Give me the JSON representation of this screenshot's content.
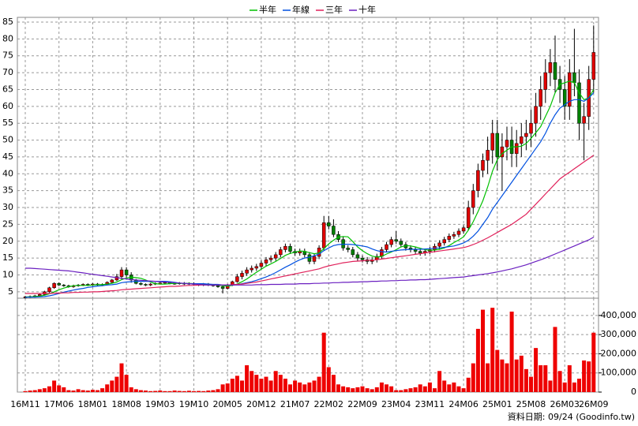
{
  "chart_data": {
    "type": "candlestick",
    "legend": "top",
    "grid": true,
    "source": "資料日期: 09/24 (Goodinfo.tw)",
    "up_color": "#e00000",
    "down_color": "#008000",
    "volume_color": "#ee0000",
    "categories": [
      "16M11",
      null,
      null,
      null,
      null,
      null,
      null,
      "17M06",
      null,
      null,
      null,
      null,
      null,
      null,
      "18M01",
      null,
      null,
      null,
      null,
      null,
      null,
      "18M08",
      null,
      null,
      null,
      null,
      null,
      null,
      "19M03",
      null,
      null,
      null,
      null,
      null,
      null,
      "19M10",
      null,
      null,
      null,
      null,
      null,
      null,
      "20M05",
      null,
      null,
      null,
      null,
      null,
      null,
      "20M12",
      null,
      null,
      null,
      null,
      null,
      null,
      "21M07",
      null,
      null,
      null,
      null,
      null,
      null,
      "22M02",
      null,
      null,
      null,
      null,
      null,
      null,
      "22M09",
      null,
      null,
      null,
      null,
      null,
      null,
      "23M04",
      null,
      null,
      null,
      null,
      null,
      null,
      "23M11",
      null,
      null,
      null,
      null,
      null,
      null,
      "24M06",
      null,
      null,
      null,
      null,
      null,
      null,
      "25M01",
      null,
      null,
      null,
      null,
      null,
      null,
      "25M08",
      null,
      null,
      null,
      null,
      null,
      null,
      "26M03",
      null,
      null,
      null,
      null,
      null,
      "26M09"
    ],
    "open": [
      3.3,
      3.5,
      3.6,
      3.8,
      4.2,
      5.0,
      6.2,
      7.5,
      7.0,
      6.8,
      6.5,
      6.8,
      7.0,
      7.2,
      7.0,
      7.3,
      7.0,
      7.2,
      7.8,
      8.5,
      9.5,
      11.5,
      10.0,
      8.5,
      7.5,
      7.2,
      7.0,
      7.3,
      7.5,
      7.6,
      7.8,
      7.5,
      7.4,
      7.6,
      7.3,
      7.5,
      7.2,
      7.0,
      7.3,
      7.0,
      6.8,
      6.5,
      6.0,
      7.0,
      8.0,
      9.5,
      10.5,
      11.5,
      12.0,
      12.5,
      13.5,
      14.5,
      15.0,
      16.0,
      17.5,
      18.5,
      17.0,
      16.5,
      17.0,
      16.0,
      14.0,
      15.5,
      18.0,
      25.5,
      24.5,
      22.0,
      20.5,
      18.0,
      17.5,
      16.0,
      15.0,
      14.5,
      14.0,
      14.5,
      15.5,
      17.5,
      19.0,
      20.5,
      20.0,
      19.0,
      18.0,
      17.5,
      17.0,
      16.5,
      17.0,
      17.5,
      18.5,
      19.5,
      20.5,
      21.5,
      22.0,
      23.0,
      24.0,
      30.0,
      35.0,
      41.0,
      44.0,
      47.0,
      52.0,
      45.0,
      48.0,
      50.0,
      46.0,
      49.0,
      51.0,
      52.0,
      55.0,
      60.0,
      65.0,
      70.0,
      73.0,
      68.0,
      65.0,
      60.0,
      70.0,
      67.0,
      55.0,
      57.0,
      68.0
    ],
    "high": [
      3.8,
      3.9,
      4.1,
      4.5,
      5.3,
      6.5,
      7.8,
      7.8,
      7.3,
      7.1,
      7.1,
      7.3,
      7.5,
      7.5,
      7.6,
      7.6,
      7.5,
      8.1,
      8.8,
      10.3,
      12.3,
      12.3,
      10.8,
      8.8,
      7.8,
      7.5,
      7.6,
      7.8,
      7.9,
      8.1,
      8.1,
      7.8,
      7.9,
      7.9,
      7.8,
      7.8,
      7.5,
      7.6,
      7.6,
      7.3,
      7.1,
      6.8,
      7.3,
      8.3,
      10.3,
      11.3,
      12.3,
      12.8,
      13.3,
      14.3,
      15.3,
      15.8,
      16.8,
      18.3,
      19.3,
      19.3,
      17.8,
      17.8,
      17.8,
      16.8,
      16.3,
      18.8,
      27.5,
      27.5,
      26.5,
      23.0,
      21.3,
      18.8,
      18.3,
      16.8,
      15.8,
      15.3,
      15.3,
      16.3,
      18.3,
      19.8,
      21.3,
      23.0,
      20.8,
      19.8,
      18.8,
      18.3,
      17.8,
      17.8,
      18.3,
      19.3,
      20.3,
      21.3,
      22.3,
      22.8,
      23.8,
      24.8,
      32.0,
      37.0,
      43.0,
      46.0,
      51.0,
      56.0,
      56.0,
      52.0,
      54.0,
      54.0,
      53.0,
      55.0,
      56.0,
      59.0,
      64.0,
      69.0,
      74.0,
      77.0,
      81.0,
      72.0,
      69.0,
      74.0,
      83.0,
      71.0,
      61.0,
      72.0,
      84.0
    ],
    "low": [
      3.0,
      3.2,
      3.3,
      3.5,
      3.9,
      4.7,
      5.9,
      6.7,
      6.5,
      6.2,
      6.2,
      6.5,
      6.7,
      6.7,
      6.7,
      6.7,
      6.7,
      6.9,
      7.5,
      8.2,
      8.7,
      9.2,
      7.7,
      7.2,
      6.9,
      6.7,
      6.7,
      7.0,
      7.2,
      7.3,
      7.2,
      7.1,
      7.1,
      7.0,
      7.0,
      6.9,
      6.7,
      6.7,
      6.7,
      6.5,
      6.2,
      4.5,
      5.7,
      6.7,
      7.7,
      8.7,
      9.7,
      10.7,
      11.2,
      11.7,
      12.7,
      13.7,
      14.2,
      15.2,
      16.7,
      16.2,
      15.7,
      15.7,
      15.2,
      13.2,
      13.2,
      14.7,
      17.2,
      23.5,
      21.2,
      19.7,
      17.2,
      16.7,
      15.2,
      14.2,
      13.7,
      13.2,
      13.2,
      13.7,
      14.7,
      16.7,
      18.2,
      19.2,
      18.2,
      17.2,
      16.7,
      16.2,
      15.7,
      15.7,
      16.2,
      16.7,
      17.7,
      18.7,
      19.7,
      20.7,
      21.2,
      22.2,
      23.2,
      28.0,
      33.0,
      39.0,
      40.0,
      43.0,
      41.0,
      35.0,
      44.0,
      42.0,
      42.0,
      45.0,
      47.0,
      48.0,
      51.0,
      56.0,
      61.0,
      66.0,
      64.0,
      61.0,
      56.0,
      56.0,
      63.0,
      50.0,
      44.0,
      53.0,
      64.0
    ],
    "close": [
      3.5,
      3.6,
      3.8,
      4.2,
      5.0,
      6.2,
      7.5,
      7.0,
      6.8,
      6.5,
      6.8,
      7.0,
      7.2,
      7.0,
      7.3,
      7.0,
      7.2,
      7.8,
      8.5,
      9.5,
      11.5,
      10.0,
      8.5,
      7.5,
      7.2,
      7.0,
      7.3,
      7.5,
      7.6,
      7.8,
      7.5,
      7.4,
      7.6,
      7.3,
      7.5,
      7.2,
      7.0,
      7.3,
      7.0,
      6.8,
      6.5,
      6.0,
      7.0,
      8.0,
      9.5,
      10.5,
      11.5,
      12.0,
      12.5,
      13.5,
      14.5,
      15.0,
      16.0,
      17.5,
      18.5,
      17.0,
      16.5,
      17.0,
      16.0,
      14.0,
      15.5,
      18.0,
      25.5,
      24.5,
      22.0,
      20.5,
      18.0,
      17.5,
      16.0,
      15.0,
      14.5,
      14.0,
      14.5,
      15.5,
      17.5,
      19.0,
      20.5,
      20.0,
      19.0,
      18.0,
      17.5,
      17.0,
      16.5,
      17.0,
      17.5,
      18.5,
      19.5,
      20.5,
      21.5,
      22.0,
      23.0,
      24.0,
      30.0,
      35.0,
      41.0,
      44.0,
      47.0,
      52.0,
      45.0,
      48.0,
      50.0,
      46.0,
      49.0,
      51.0,
      52.0,
      55.0,
      60.0,
      65.0,
      70.0,
      73.0,
      68.0,
      65.0,
      60.0,
      70.0,
      67.0,
      55.0,
      57.0,
      68.0,
      76.0
    ],
    "volume": [
      5000,
      8000,
      10000,
      15000,
      20000,
      30000,
      60000,
      35000,
      25000,
      10000,
      8000,
      15000,
      10000,
      8000,
      12000,
      10000,
      20000,
      40000,
      60000,
      80000,
      150000,
      90000,
      25000,
      15000,
      10000,
      8000,
      5000,
      6000,
      8000,
      5000,
      5000,
      8000,
      6000,
      5000,
      7000,
      5000,
      6000,
      5000,
      8000,
      10000,
      15000,
      40000,
      45000,
      70000,
      85000,
      60000,
      140000,
      110000,
      90000,
      70000,
      80000,
      60000,
      110000,
      90000,
      70000,
      40000,
      60000,
      50000,
      40000,
      50000,
      60000,
      80000,
      310000,
      130000,
      90000,
      40000,
      30000,
      25000,
      20000,
      25000,
      30000,
      20000,
      15000,
      25000,
      50000,
      40000,
      30000,
      10000,
      10000,
      15000,
      20000,
      25000,
      40000,
      30000,
      50000,
      20000,
      110000,
      60000,
      40000,
      50000,
      30000,
      20000,
      75000,
      150000,
      330000,
      430000,
      150000,
      440000,
      220000,
      170000,
      150000,
      420000,
      170000,
      190000,
      120000,
      80000,
      230000,
      140000,
      140000,
      60000,
      340000,
      110000,
      50000,
      140000,
      50000,
      70000,
      165000,
      160000,
      310000
    ],
    "series": [
      {
        "name": "半年",
        "color": "#00c000",
        "values": [
          3.5,
          3.5,
          3.6,
          3.7,
          4.0,
          4.4,
          5.0,
          5.6,
          6.1,
          6.5,
          6.8,
          6.9,
          6.9,
          6.9,
          7.0,
          7.1,
          7.1,
          7.3,
          7.5,
          7.9,
          8.6,
          9.1,
          9.3,
          9.2,
          9.0,
          8.5,
          7.9,
          7.4,
          7.3,
          7.3,
          7.4,
          7.5,
          7.5,
          7.5,
          7.5,
          7.4,
          7.3,
          7.3,
          7.2,
          7.1,
          7.0,
          6.8,
          6.7,
          6.9,
          7.3,
          8.0,
          8.8,
          9.8,
          10.8,
          11.7,
          12.6,
          13.3,
          14.0,
          14.9,
          15.8,
          16.4,
          16.8,
          17.1,
          17.0,
          16.6,
          16.3,
          16.5,
          17.8,
          19.2,
          20.3,
          21.2,
          21.4,
          21.3,
          19.9,
          18.3,
          17.2,
          16.3,
          15.6,
          15.3,
          15.5,
          16.2,
          16.8,
          17.5,
          18.3,
          18.7,
          18.6,
          18.3,
          17.9,
          17.5,
          17.3,
          17.4,
          17.6,
          18.0,
          18.7,
          19.6,
          20.4,
          21.3,
          23.3,
          25.8,
          28.8,
          32.0,
          36.1,
          40.8,
          44.2,
          46.0,
          47.0,
          48.0,
          48.0,
          48.2,
          49.0,
          50.5,
          52.2,
          54.0,
          57.0,
          60.0,
          64.0,
          66.5,
          67.0,
          67.5,
          67.0,
          64.0,
          62.0,
          62.5,
          65.0
        ]
      },
      {
        "name": "年線",
        "color": "#0050e0",
        "values": [
          3.4,
          3.4,
          3.4,
          3.5,
          3.6,
          3.8,
          4.1,
          4.5,
          4.9,
          5.2,
          5.5,
          5.8,
          6.0,
          6.3,
          6.5,
          6.7,
          6.8,
          7.0,
          7.1,
          7.3,
          7.7,
          7.9,
          8.0,
          8.1,
          8.1,
          8.1,
          8.1,
          8.1,
          8.1,
          8.1,
          8.0,
          7.8,
          7.6,
          7.5,
          7.4,
          7.4,
          7.4,
          7.4,
          7.3,
          7.2,
          7.2,
          7.0,
          7.0,
          7.0,
          7.1,
          7.4,
          7.7,
          8.0,
          8.4,
          8.9,
          9.4,
          10.0,
          10.7,
          11.5,
          12.3,
          13.0,
          13.8,
          14.5,
          15.0,
          15.3,
          15.7,
          16.2,
          17.2,
          18.0,
          18.7,
          19.0,
          19.1,
          19.1,
          19.0,
          18.8,
          18.6,
          18.3,
          17.7,
          17.2,
          16.9,
          16.8,
          17.0,
          17.2,
          17.4,
          17.5,
          17.6,
          17.6,
          17.6,
          17.7,
          17.8,
          17.9,
          18.0,
          18.2,
          18.4,
          18.6,
          19.0,
          19.5,
          20.3,
          21.5,
          23.0,
          25.0,
          27.0,
          29.5,
          31.5,
          33.5,
          35.5,
          37.5,
          39.5,
          41.5,
          43.5,
          45.5,
          47.5,
          49.5,
          52.0,
          55.0,
          57.5,
          59.5,
          60.5,
          61.5,
          62.0,
          62.0,
          61.5,
          62.5,
          64.0
        ]
      },
      {
        "name": "三年",
        "color": "#e0205a",
        "values": [
          4.5,
          4.5,
          4.5,
          4.5,
          4.5,
          4.5,
          4.6,
          4.6,
          4.7,
          4.7,
          4.8,
          4.8,
          4.9,
          4.9,
          5.0,
          5.0,
          5.1,
          5.2,
          5.3,
          5.4,
          5.6,
          5.7,
          5.8,
          5.9,
          6.0,
          6.1,
          6.2,
          6.3,
          6.4,
          6.5,
          6.6,
          6.6,
          6.7,
          6.8,
          6.9,
          6.9,
          7.0,
          7.0,
          7.0,
          7.0,
          7.0,
          7.0,
          7.0,
          7.1,
          7.2,
          7.3,
          7.5,
          7.7,
          7.9,
          8.2,
          8.5,
          8.8,
          9.1,
          9.4,
          9.7,
          10.0,
          10.3,
          10.6,
          10.9,
          11.2,
          11.5,
          11.8,
          12.3,
          12.7,
          13.0,
          13.3,
          13.6,
          13.8,
          14.0,
          14.1,
          14.2,
          14.3,
          14.4,
          14.5,
          14.7,
          14.9,
          15.1,
          15.3,
          15.5,
          15.7,
          15.9,
          16.1,
          16.3,
          16.5,
          16.7,
          16.9,
          17.1,
          17.3,
          17.5,
          17.7,
          17.9,
          18.1,
          18.5,
          19.0,
          19.6,
          20.3,
          21.0,
          21.8,
          22.6,
          23.4,
          24.2,
          25.0,
          26.0,
          27.0,
          28.0,
          29.5,
          31.0,
          32.5,
          34.0,
          35.5,
          37.0,
          38.5,
          39.5,
          40.5,
          41.5,
          42.5,
          43.5,
          44.5,
          45.5
        ]
      },
      {
        "name": "十年",
        "color": "#6a1fc0",
        "values": [
          12.0,
          12.0,
          11.9,
          11.8,
          11.7,
          11.6,
          11.5,
          11.4,
          11.3,
          11.2,
          11.0,
          10.8,
          10.6,
          10.4,
          10.2,
          10.0,
          9.8,
          9.6,
          9.4,
          9.2,
          9.0,
          8.8,
          8.6,
          8.5,
          8.4,
          8.3,
          8.2,
          8.1,
          8.0,
          7.9,
          7.8,
          7.7,
          7.6,
          7.5,
          7.4,
          7.3,
          7.2,
          7.1,
          7.0,
          7.0,
          7.0,
          7.0,
          7.0,
          7.0,
          7.0,
          7.0,
          7.0,
          7.0,
          7.1,
          7.1,
          7.1,
          7.2,
          7.2,
          7.2,
          7.3,
          7.3,
          7.3,
          7.4,
          7.4,
          7.4,
          7.5,
          7.5,
          7.6,
          7.6,
          7.7,
          7.7,
          7.8,
          7.8,
          7.9,
          7.9,
          8.0,
          8.0,
          8.1,
          8.1,
          8.2,
          8.2,
          8.3,
          8.3,
          8.4,
          8.4,
          8.5,
          8.5,
          8.6,
          8.6,
          8.7,
          8.8,
          8.9,
          9.0,
          9.1,
          9.2,
          9.3,
          9.4,
          9.6,
          9.8,
          10.0,
          10.2,
          10.4,
          10.6,
          10.9,
          11.2,
          11.5,
          11.8,
          12.2,
          12.6,
          13.0,
          13.5,
          14.0,
          14.5,
          15.0,
          15.6,
          16.2,
          16.8,
          17.4,
          18.0,
          18.6,
          19.2,
          19.8,
          20.4,
          21.2
        ]
      }
    ],
    "ylim": [
      3.1,
      86.4
    ],
    "yticks": [
      5,
      10,
      15,
      20,
      25,
      30,
      35,
      40,
      45,
      50,
      55,
      60,
      65,
      70,
      75,
      80,
      85
    ],
    "y2lim": [
      0,
      490000
    ],
    "y2ticks": [
      0,
      {
        "value": 100000,
        "label": "100,000"
      },
      {
        "value": 200000,
        "label": "200,000"
      },
      {
        "value": 300000,
        "label": "300,000"
      },
      {
        "value": 400000,
        "label": "400,000"
      }
    ]
  }
}
